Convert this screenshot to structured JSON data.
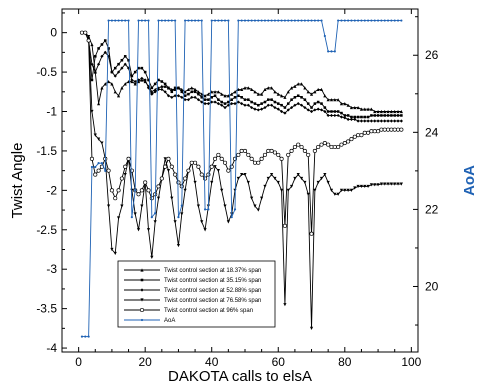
{
  "chart_data": {
    "type": "line",
    "xlabel": "DAKOTA calls to elsA",
    "ylabel": "Twist Angle",
    "y2label": "AoA",
    "xlim": [
      -5,
      102
    ],
    "ylim": [
      -4.05,
      0.3
    ],
    "y2lim": [
      18.3,
      27.2
    ],
    "xticks": [
      0,
      20,
      40,
      60,
      80,
      100
    ],
    "yticks": [
      0,
      -0.5,
      -1,
      -1.5,
      -2,
      -2.5,
      -3,
      -3.5,
      -4
    ],
    "ytick_labels": [
      "0",
      "-0.5",
      "-1",
      "-1.5",
      "-2",
      "-2.5",
      "-3",
      "-3.5",
      "-4"
    ],
    "y2ticks": [
      20,
      22,
      24,
      26
    ],
    "grid": false,
    "legend_position": "lower-center",
    "colors": {
      "twist": "#000000",
      "aoa": "#1f62b4"
    },
    "series": [
      {
        "name": "Twist control section at 18.37% span",
        "axis": "left",
        "marker": "triangle",
        "x": [
          1,
          2,
          3,
          4,
          5,
          6,
          7,
          8,
          9,
          10,
          11,
          12,
          13,
          14,
          15,
          16,
          17,
          18,
          19,
          20,
          21,
          22,
          23,
          24,
          25,
          26,
          27,
          28,
          29,
          30,
          31,
          32,
          33,
          34,
          35,
          36,
          37,
          38,
          39,
          40,
          41,
          42,
          43,
          44,
          45,
          46,
          47,
          48,
          49,
          50,
          51,
          52,
          53,
          54,
          55,
          56,
          57,
          58,
          59,
          60,
          61,
          62,
          63,
          64,
          65,
          66,
          67,
          68,
          69,
          70,
          71,
          72,
          73,
          74,
          75,
          76,
          77,
          78,
          79,
          80,
          81,
          82,
          83,
          84,
          85,
          86,
          87,
          88,
          89,
          90,
          91,
          92,
          93,
          94,
          95,
          96,
          97
        ],
        "values": [
          0,
          0,
          -0.05,
          -0.15,
          -0.5,
          -0.9,
          -0.7,
          -0.65,
          -0.62,
          -0.65,
          -0.75,
          -0.8,
          -0.7,
          -0.65,
          -0.62,
          -0.62,
          -0.65,
          -0.62,
          -0.6,
          -0.62,
          -0.68,
          -0.75,
          -0.72,
          -0.7,
          -0.68,
          -0.68,
          -0.7,
          -0.72,
          -0.72,
          -0.7,
          -0.72,
          -0.75,
          -0.72,
          -0.7,
          -0.72,
          -0.75,
          -0.78,
          -0.8,
          -0.78,
          -0.75,
          -0.75,
          -0.75,
          -0.78,
          -0.8,
          -0.8,
          -0.78,
          -0.75,
          -0.72,
          -0.72,
          -0.7,
          -0.7,
          -0.72,
          -0.75,
          -0.78,
          -0.78,
          -0.72,
          -0.7,
          -0.7,
          -0.75,
          -0.78,
          -0.8,
          -0.82,
          -0.75,
          -0.7,
          -0.68,
          -0.65,
          -0.65,
          -0.7,
          -0.75,
          -0.78,
          -0.75,
          -0.72,
          -0.72,
          -0.8,
          -0.85,
          -0.85,
          -0.85,
          -0.85,
          -0.9,
          -0.9,
          -0.92,
          -0.95,
          -0.95,
          -0.95,
          -0.97,
          -0.97,
          -0.97,
          -0.97,
          -1.0,
          -1.0,
          -1.0,
          -1.0,
          -1.0,
          -1.0,
          -1.0,
          -1.0,
          -1.0
        ]
      },
      {
        "name": "Twist control section at 35.15% span",
        "axis": "left",
        "marker": "square",
        "x": [
          1,
          2,
          3,
          4,
          5,
          6,
          7,
          8,
          9,
          10,
          11,
          12,
          13,
          14,
          15,
          16,
          17,
          18,
          19,
          20,
          21,
          22,
          23,
          24,
          25,
          26,
          27,
          28,
          29,
          30,
          31,
          32,
          33,
          34,
          35,
          36,
          37,
          38,
          39,
          40,
          41,
          42,
          43,
          44,
          45,
          46,
          47,
          48,
          49,
          50,
          51,
          52,
          53,
          54,
          55,
          56,
          57,
          58,
          59,
          60,
          61,
          62,
          63,
          64,
          65,
          66,
          67,
          68,
          69,
          70,
          71,
          72,
          73,
          74,
          75,
          76,
          77,
          78,
          79,
          80,
          81,
          82,
          83,
          84,
          85,
          86,
          87,
          88,
          89,
          90,
          91,
          92,
          93,
          94,
          95,
          96,
          97
        ],
        "values": [
          0,
          0,
          -0.1,
          -0.6,
          -0.3,
          -0.2,
          -0.15,
          -0.1,
          -0.2,
          -0.5,
          -0.45,
          -0.4,
          -0.35,
          -0.3,
          -0.35,
          -0.55,
          -0.5,
          -0.45,
          -0.45,
          -0.5,
          -0.6,
          -0.7,
          -0.65,
          -0.6,
          -0.62,
          -0.65,
          -0.7,
          -0.75,
          -0.7,
          -0.7,
          -0.75,
          -0.8,
          -0.78,
          -0.75,
          -0.75,
          -0.78,
          -0.82,
          -0.85,
          -0.85,
          -0.82,
          -0.8,
          -0.85,
          -0.88,
          -0.9,
          -0.88,
          -0.85,
          -0.82,
          -0.8,
          -0.82,
          -0.85,
          -0.85,
          -0.88,
          -0.9,
          -0.92,
          -0.9,
          -0.88,
          -0.85,
          -0.85,
          -0.88,
          -0.9,
          -0.92,
          -0.95,
          -0.9,
          -0.85,
          -0.82,
          -0.8,
          -0.82,
          -0.85,
          -0.9,
          -0.95,
          -0.9,
          -0.88,
          -0.9,
          -0.95,
          -1.0,
          -1.0,
          -1.0,
          -1.0,
          -1.02,
          -1.05,
          -1.05,
          -1.07,
          -1.07,
          -1.07,
          -1.07,
          -1.07,
          -1.07,
          -1.05,
          -1.05,
          -1.05,
          -1.05,
          -1.05,
          -1.05,
          -1.05,
          -1.05,
          -1.05,
          -1.05
        ]
      },
      {
        "name": "Twist control section at 52.88% span",
        "axis": "left",
        "marker": "diamond",
        "x": [
          1,
          2,
          3,
          4,
          5,
          6,
          7,
          8,
          9,
          10,
          11,
          12,
          13,
          14,
          15,
          16,
          17,
          18,
          19,
          20,
          21,
          22,
          23,
          24,
          25,
          26,
          27,
          28,
          29,
          30,
          31,
          32,
          33,
          34,
          35,
          36,
          37,
          38,
          39,
          40,
          41,
          42,
          43,
          44,
          45,
          46,
          47,
          48,
          49,
          50,
          51,
          52,
          53,
          54,
          55,
          56,
          57,
          58,
          59,
          60,
          61,
          62,
          63,
          64,
          65,
          66,
          67,
          68,
          69,
          70,
          71,
          72,
          73,
          74,
          75,
          76,
          77,
          78,
          79,
          80,
          81,
          82,
          83,
          84,
          85,
          86,
          87,
          88,
          89,
          90,
          91,
          92,
          93,
          94,
          95,
          96,
          97
        ],
        "values": [
          0,
          0,
          -0.1,
          -0.4,
          -0.5,
          -0.4,
          -0.3,
          -0.25,
          -0.3,
          -0.5,
          -0.55,
          -0.5,
          -0.45,
          -0.4,
          -0.45,
          -0.6,
          -0.62,
          -0.6,
          -0.58,
          -0.6,
          -0.7,
          -0.78,
          -0.75,
          -0.72,
          -0.72,
          -0.75,
          -0.8,
          -0.82,
          -0.8,
          -0.8,
          -0.82,
          -0.85,
          -0.85,
          -0.82,
          -0.82,
          -0.85,
          -0.88,
          -0.9,
          -0.9,
          -0.88,
          -0.88,
          -0.9,
          -0.92,
          -0.95,
          -0.92,
          -0.9,
          -0.9,
          -0.88,
          -0.9,
          -0.92,
          -0.92,
          -0.95,
          -0.97,
          -0.98,
          -0.97,
          -0.95,
          -0.92,
          -0.92,
          -0.95,
          -0.97,
          -1.0,
          -1.02,
          -0.98,
          -0.95,
          -0.92,
          -0.9,
          -0.92,
          -0.95,
          -0.98,
          -1.0,
          -0.98,
          -0.97,
          -0.98,
          -1.0,
          -1.05,
          -1.05,
          -1.05,
          -1.05,
          -1.07,
          -1.08,
          -1.1,
          -1.1,
          -1.1,
          -1.12,
          -1.12,
          -1.12,
          -1.12,
          -1.12,
          -1.12,
          -1.12,
          -1.12,
          -1.12,
          -1.12,
          -1.12,
          -1.12,
          -1.12,
          -1.12
        ]
      },
      {
        "name": "Twist control section at 76.58% span",
        "axis": "left",
        "marker": "triangle-down",
        "x": [
          1,
          2,
          3,
          4,
          5,
          6,
          7,
          8,
          9,
          10,
          11,
          12,
          13,
          14,
          15,
          16,
          17,
          18,
          19,
          20,
          21,
          22,
          23,
          24,
          25,
          26,
          27,
          28,
          29,
          30,
          31,
          32,
          33,
          34,
          35,
          36,
          37,
          38,
          39,
          40,
          41,
          42,
          43,
          44,
          45,
          46,
          47,
          48,
          49,
          50,
          51,
          52,
          53,
          54,
          55,
          56,
          57,
          58,
          59,
          60,
          61,
          62,
          63,
          64,
          65,
          66,
          67,
          68,
          69,
          70,
          71,
          72,
          73,
          74,
          75,
          76,
          77,
          78,
          79,
          80,
          81,
          82,
          83,
          84,
          85,
          86,
          87,
          88,
          89,
          90,
          91,
          92,
          93,
          94,
          95,
          96,
          97
        ],
        "values": [
          0,
          0,
          -0.05,
          -1.0,
          -1.3,
          -1.35,
          -1.4,
          -1.6,
          -2.2,
          -2.75,
          -2.8,
          -2.35,
          -2.2,
          -1.8,
          -1.6,
          -2.0,
          -2.3,
          -2.5,
          -2.2,
          -1.9,
          -2.5,
          -2.85,
          -2.4,
          -2.1,
          -1.85,
          -1.6,
          -1.75,
          -2.1,
          -2.4,
          -2.7,
          -2.3,
          -2.0,
          -1.75,
          -1.65,
          -1.9,
          -2.2,
          -2.4,
          -2.5,
          -2.2,
          -1.9,
          -1.7,
          -1.75,
          -2.0,
          -2.2,
          -2.4,
          -2.3,
          -2.0,
          -1.85,
          -1.8,
          -1.8,
          -1.9,
          -2.1,
          -2.2,
          -2.25,
          -2.1,
          -1.95,
          -1.85,
          -1.8,
          -1.85,
          -1.9,
          -2.0,
          -3.45,
          -2.0,
          -1.95,
          -1.85,
          -1.8,
          -1.85,
          -1.9,
          -2.05,
          -3.75,
          -2.0,
          -1.9,
          -1.85,
          -1.8,
          -1.9,
          -2.0,
          -2.05,
          -2.05,
          -2.0,
          -2.0,
          -2.0,
          -2.0,
          -1.97,
          -1.95,
          -1.95,
          -1.95,
          -1.95,
          -1.93,
          -1.93,
          -1.93,
          -1.92,
          -1.92,
          -1.92,
          -1.92,
          -1.92,
          -1.92,
          -1.92
        ]
      },
      {
        "name": "Twist control section at 96% span",
        "axis": "left",
        "marker": "circle",
        "x": [
          1,
          2,
          3,
          4,
          5,
          6,
          7,
          8,
          9,
          10,
          11,
          12,
          13,
          14,
          15,
          16,
          17,
          18,
          19,
          20,
          21,
          22,
          23,
          24,
          25,
          26,
          27,
          28,
          29,
          30,
          31,
          32,
          33,
          34,
          35,
          36,
          37,
          38,
          39,
          40,
          41,
          42,
          43,
          44,
          45,
          46,
          47,
          48,
          49,
          50,
          51,
          52,
          53,
          54,
          55,
          56,
          57,
          58,
          59,
          60,
          61,
          62,
          63,
          64,
          65,
          66,
          67,
          68,
          69,
          70,
          71,
          72,
          73,
          74,
          75,
          76,
          77,
          78,
          79,
          80,
          81,
          82,
          83,
          84,
          85,
          86,
          87,
          88,
          89,
          90,
          91,
          92,
          93,
          94,
          95,
          96,
          97
        ],
        "values": [
          0,
          0,
          -0.1,
          -1.6,
          -1.8,
          -1.75,
          -1.7,
          -1.6,
          -1.75,
          -2.0,
          -2.1,
          -2.0,
          -1.85,
          -1.7,
          -1.6,
          -1.75,
          -2.0,
          -2.05,
          -2.0,
          -1.9,
          -2.0,
          -2.1,
          -2.05,
          -1.95,
          -1.85,
          -1.7,
          -1.6,
          -1.7,
          -1.8,
          -1.9,
          -1.95,
          -1.85,
          -1.75,
          -1.65,
          -1.65,
          -1.7,
          -1.8,
          -1.85,
          -1.8,
          -1.7,
          -1.6,
          -1.55,
          -1.6,
          -1.65,
          -1.75,
          -1.7,
          -1.6,
          -1.55,
          -1.5,
          -1.5,
          -1.55,
          -1.6,
          -1.65,
          -1.65,
          -1.6,
          -1.55,
          -1.5,
          -1.5,
          -1.52,
          -1.55,
          -1.6,
          -2.45,
          -1.55,
          -1.5,
          -1.45,
          -1.42,
          -1.45,
          -1.5,
          -1.55,
          -2.55,
          -1.5,
          -1.45,
          -1.42,
          -1.4,
          -1.42,
          -1.45,
          -1.45,
          -1.45,
          -1.42,
          -1.4,
          -1.38,
          -1.35,
          -1.32,
          -1.3,
          -1.3,
          -1.27,
          -1.27,
          -1.25,
          -1.25,
          -1.25,
          -1.23,
          -1.23,
          -1.23,
          -1.23,
          -1.23,
          -1.23,
          -1.23
        ]
      },
      {
        "name": "AoA",
        "axis": "right",
        "marker": "dot",
        "x": [
          1,
          2,
          3,
          4,
          5,
          6,
          7,
          8,
          9,
          10,
          11,
          12,
          13,
          14,
          15,
          16,
          17,
          18,
          19,
          20,
          21,
          22,
          23,
          24,
          25,
          26,
          27,
          28,
          29,
          30,
          31,
          32,
          33,
          34,
          35,
          36,
          37,
          38,
          39,
          40,
          41,
          42,
          43,
          44,
          45,
          46,
          47,
          48,
          49,
          50,
          51,
          52,
          53,
          54,
          55,
          56,
          57,
          58,
          59,
          60,
          61,
          62,
          63,
          64,
          65,
          66,
          67,
          68,
          69,
          70,
          71,
          72,
          73,
          74,
          75,
          76,
          77,
          78,
          79,
          80,
          81,
          82,
          83,
          84,
          85,
          86,
          87,
          88,
          89,
          90,
          91,
          92,
          93,
          94,
          95,
          96,
          97
        ],
        "values": [
          18.7,
          18.7,
          18.7,
          23.1,
          23.1,
          23.2,
          23.2,
          23.0,
          26.9,
          26.9,
          26.9,
          26.9,
          26.9,
          26.9,
          26.9,
          21.8,
          22.5,
          26.9,
          26.9,
          26.9,
          26.9,
          21.8,
          21.9,
          26.9,
          26.9,
          26.9,
          26.9,
          26.9,
          26.9,
          21.8,
          22.1,
          26.9,
          26.9,
          26.9,
          26.9,
          26.9,
          26.9,
          22.0,
          22.0,
          26.9,
          26.9,
          26.9,
          26.9,
          26.9,
          26.9,
          21.8,
          22.0,
          26.9,
          26.9,
          26.9,
          26.9,
          26.9,
          26.9,
          26.9,
          26.9,
          26.9,
          26.9,
          26.9,
          26.9,
          26.9,
          26.9,
          26.9,
          26.9,
          26.9,
          26.9,
          26.9,
          26.9,
          26.9,
          26.9,
          26.9,
          26.9,
          26.9,
          26.9,
          26.5,
          26.1,
          26.1,
          26.1,
          26.9,
          26.9,
          26.9,
          26.9,
          26.9,
          26.9,
          26.9,
          26.9,
          26.9,
          26.9,
          26.9,
          26.9,
          26.9,
          26.9,
          26.9,
          26.9,
          26.9,
          26.9,
          26.9,
          26.9
        ]
      }
    ]
  }
}
